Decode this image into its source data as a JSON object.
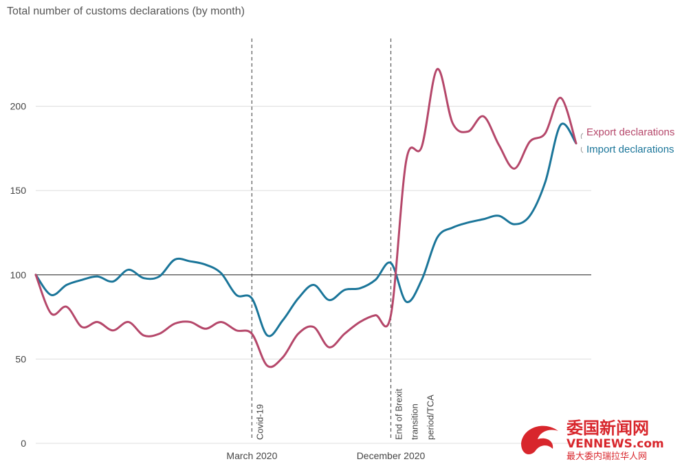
{
  "chart_data": {
    "type": "line",
    "title": "Total number of customs declarations (by month)",
    "xlabel": "",
    "ylabel": "",
    "ylim": [
      0,
      250
    ],
    "yticks": [
      0,
      50,
      100,
      150,
      200
    ],
    "xtick_labels": [
      {
        "index": 14,
        "label": "March 2020"
      },
      {
        "index": 23,
        "label": "December 2020"
      }
    ],
    "reference_line": 100,
    "grid": "horizontal",
    "legend": "right-end",
    "annotations": [
      {
        "index": 14,
        "label": "Covid-19"
      },
      {
        "index": 23,
        "label": "End of Brexit transition period/TCA",
        "lines": [
          "End of Brexit",
          "transition",
          "period/TCA"
        ]
      }
    ],
    "series": [
      {
        "name": "Export declarations",
        "color": "#b5476a",
        "values": [
          100,
          77,
          81,
          69,
          72,
          67,
          72,
          64,
          65,
          71,
          72,
          68,
          72,
          67,
          65,
          46,
          51,
          65,
          69,
          57,
          65,
          72,
          76,
          76,
          168,
          176,
          222,
          190,
          185,
          194,
          177,
          163,
          179,
          184,
          205,
          178
        ]
      },
      {
        "name": "Import declarations",
        "color": "#1a7599",
        "values": [
          100,
          88,
          94,
          97,
          99,
          96,
          103,
          98,
          99,
          109,
          108,
          106,
          101,
          88,
          86,
          64,
          73,
          86,
          94,
          85,
          91,
          92,
          97,
          107,
          84,
          97,
          122,
          128,
          131,
          133,
          135,
          130,
          135,
          155,
          189,
          178
        ]
      }
    ]
  },
  "watermark": {
    "text_cn": "委国新闻网",
    "text_url": "VENNEWS.com",
    "text_sub": "最大委内瑞拉华人网"
  }
}
